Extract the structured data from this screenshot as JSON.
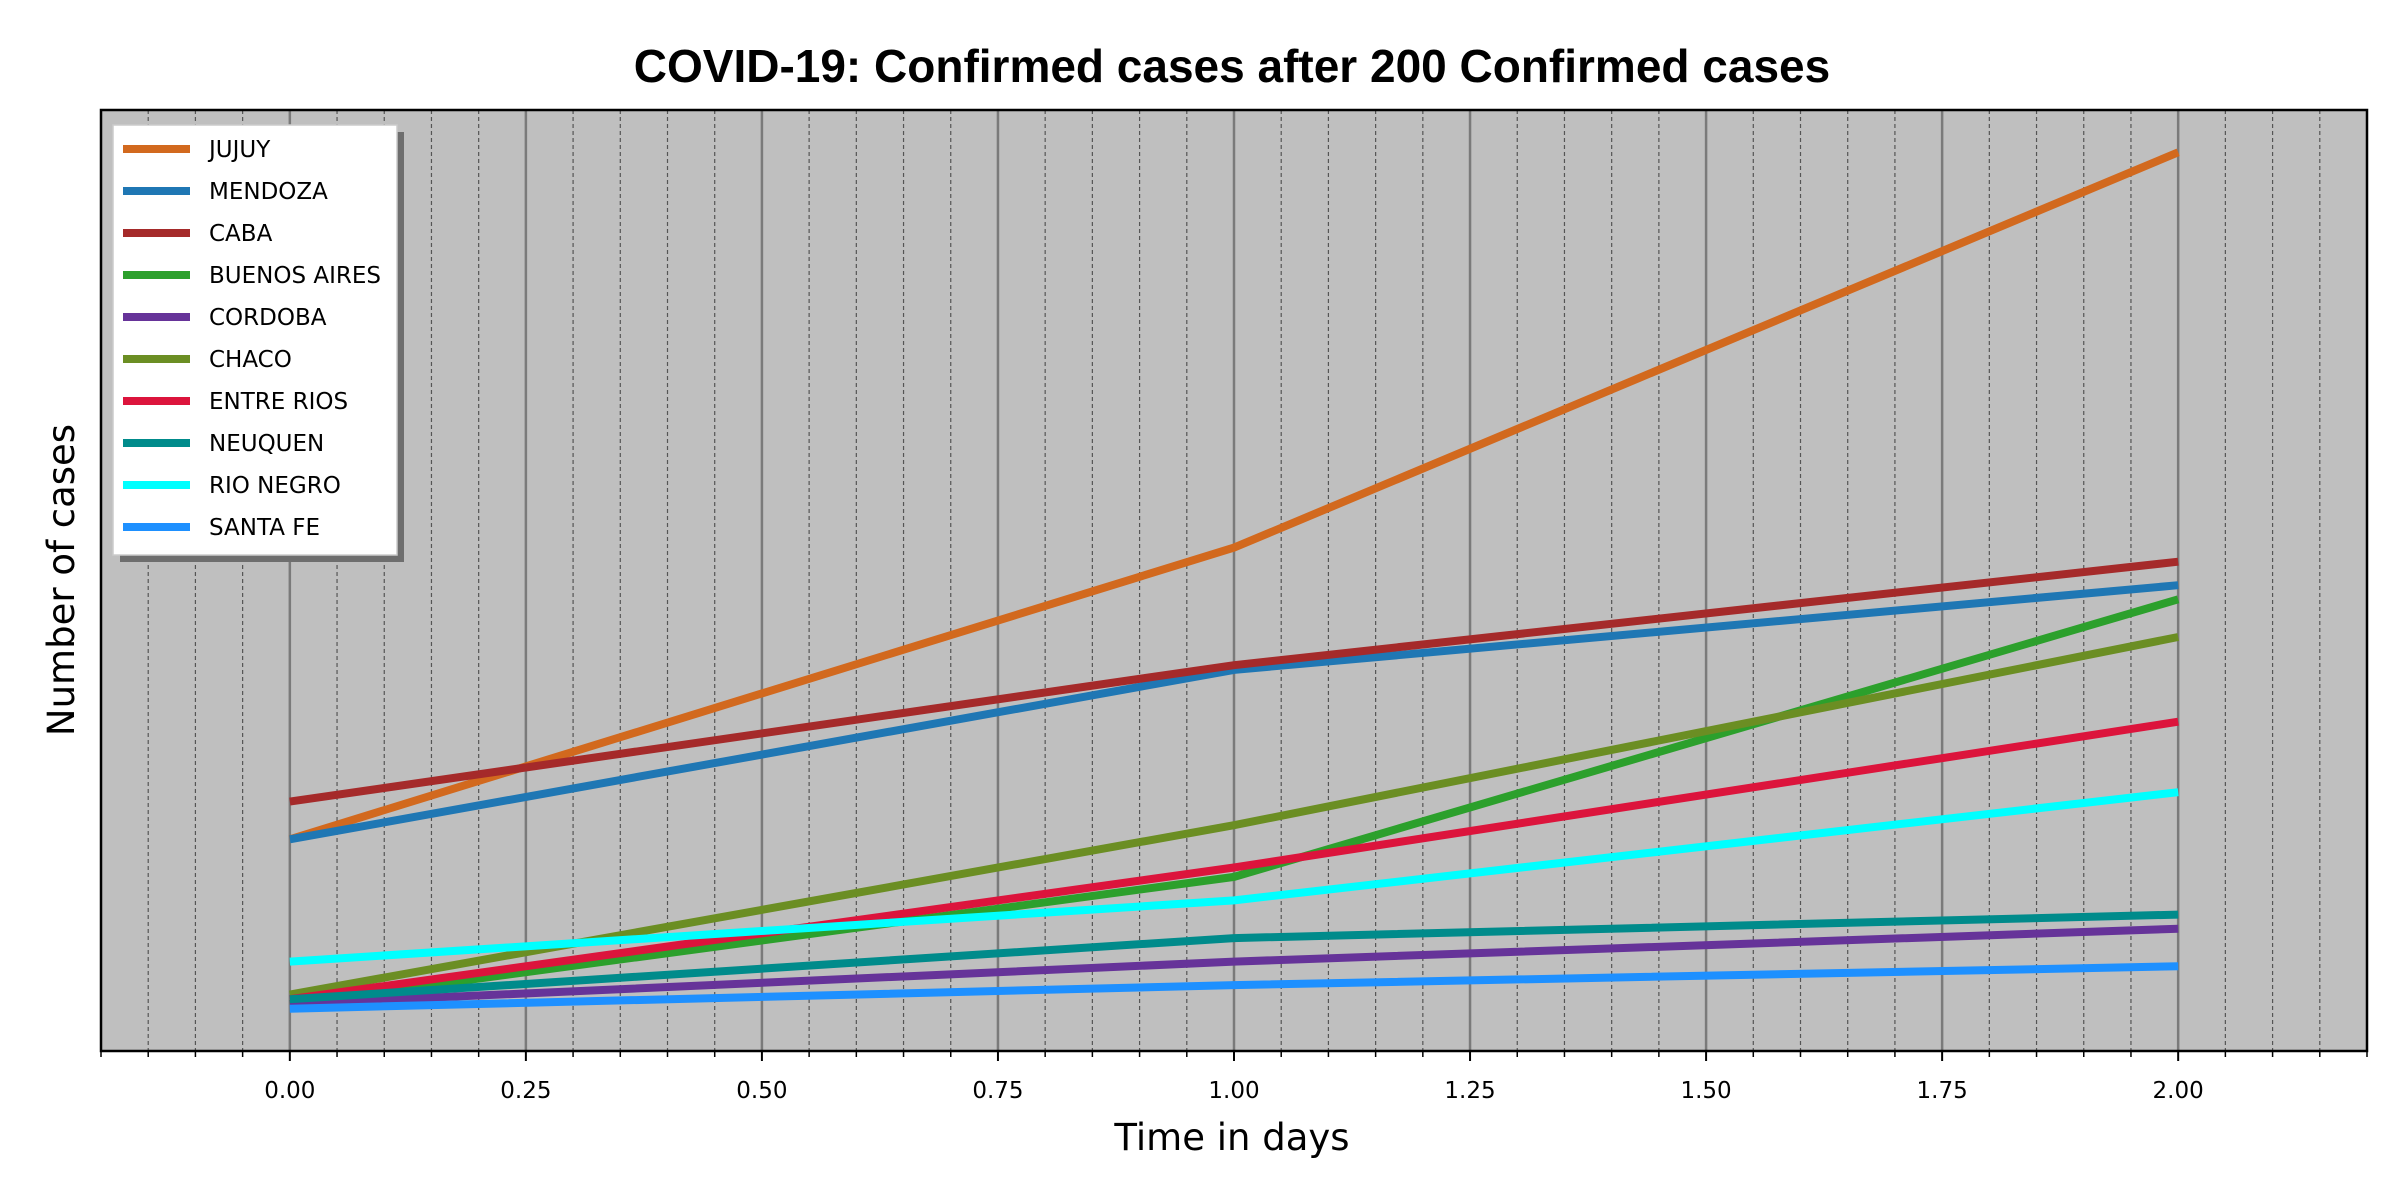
{
  "chart_data": {
    "type": "line",
    "title": "COVID-19: Confirmed cases after 200 Confirmed cases",
    "xlabel": "Time in days",
    "ylabel": "Number of cases",
    "xlim": [
      -0.2,
      2.2
    ],
    "ylim": [
      0,
      100
    ],
    "y_tick_labels": false,
    "x_ticks": [
      {
        "value": 0.0,
        "label": "0.00"
      },
      {
        "value": 0.25,
        "label": "0.25"
      },
      {
        "value": 0.5,
        "label": "0.50"
      },
      {
        "value": 0.75,
        "label": "0.75"
      },
      {
        "value": 1.0,
        "label": "1.00"
      },
      {
        "value": 1.25,
        "label": "1.25"
      },
      {
        "value": 1.5,
        "label": "1.50"
      },
      {
        "value": 1.75,
        "label": "1.75"
      },
      {
        "value": 2.0,
        "label": "2.00"
      }
    ],
    "grid": true,
    "legend_position": "top-left",
    "background": "#bfbfbf",
    "x": [
      0,
      1,
      2
    ],
    "series": [
      {
        "name": "JUJUY",
        "color": "#d2691e",
        "values": [
          22.5,
          53.5,
          95.5
        ]
      },
      {
        "name": "MENDOZA",
        "color": "#1f77b4",
        "values": [
          22.5,
          40.5,
          49.5
        ]
      },
      {
        "name": "CABA",
        "color": "#a52a2a",
        "values": [
          26.5,
          41.0,
          52.0
        ]
      },
      {
        "name": "BUENOS AIRES",
        "color": "#2ca02c",
        "values": [
          5.0,
          18.5,
          48.0
        ]
      },
      {
        "name": "CORDOBA",
        "color": "#663399",
        "values": [
          5.0,
          9.5,
          13.0
        ]
      },
      {
        "name": "CHACO",
        "color": "#6b8e23",
        "values": [
          6.0,
          24.0,
          44.0
        ]
      },
      {
        "name": "ENTRE RIOS",
        "color": "#dc143c",
        "values": [
          5.5,
          19.5,
          35.0
        ]
      },
      {
        "name": "NEUQUEN",
        "color": "#008b8b",
        "values": [
          5.5,
          12.0,
          14.5
        ]
      },
      {
        "name": "RIO NEGRO",
        "color": "#00ffff",
        "values": [
          9.5,
          16.0,
          27.5
        ]
      },
      {
        "name": "SANTA FE",
        "color": "#1e90ff",
        "values": [
          4.5,
          7.0,
          9.0
        ]
      }
    ]
  }
}
